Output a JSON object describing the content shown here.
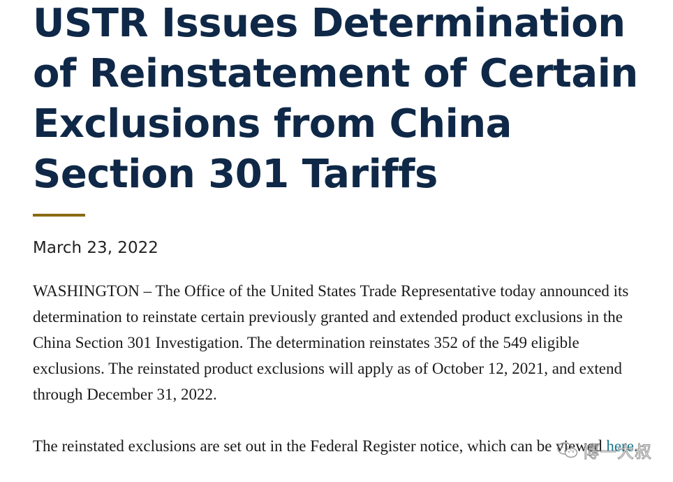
{
  "article": {
    "title": "USTR Issues Determination of Reinstatement of Certain Exclusions from China Section 301 Tariffs",
    "date": "March 23, 2022",
    "paragraph1": "WASHINGTON – The Office of the United States Trade Representative today announced its determination to reinstate certain previously granted and extended product exclusions in the China Section 301 Investigation.  The determination reinstates 352 of the 549 eligible exclusions.  The reinstated product exclusions will apply as of October 12, 2021, and extend through December 31, 2022.",
    "paragraph2_text": "The reinstated exclusions are set out in the Federal Register notice, which can be viewed ",
    "paragraph2_link": "here",
    "paragraph2_end": "."
  },
  "watermark": {
    "icon": "wechat-icon",
    "text": "博一大叔"
  },
  "colors": {
    "title": "#0f2847",
    "rule": "#8a6b12",
    "link": "#1a7a8c"
  }
}
